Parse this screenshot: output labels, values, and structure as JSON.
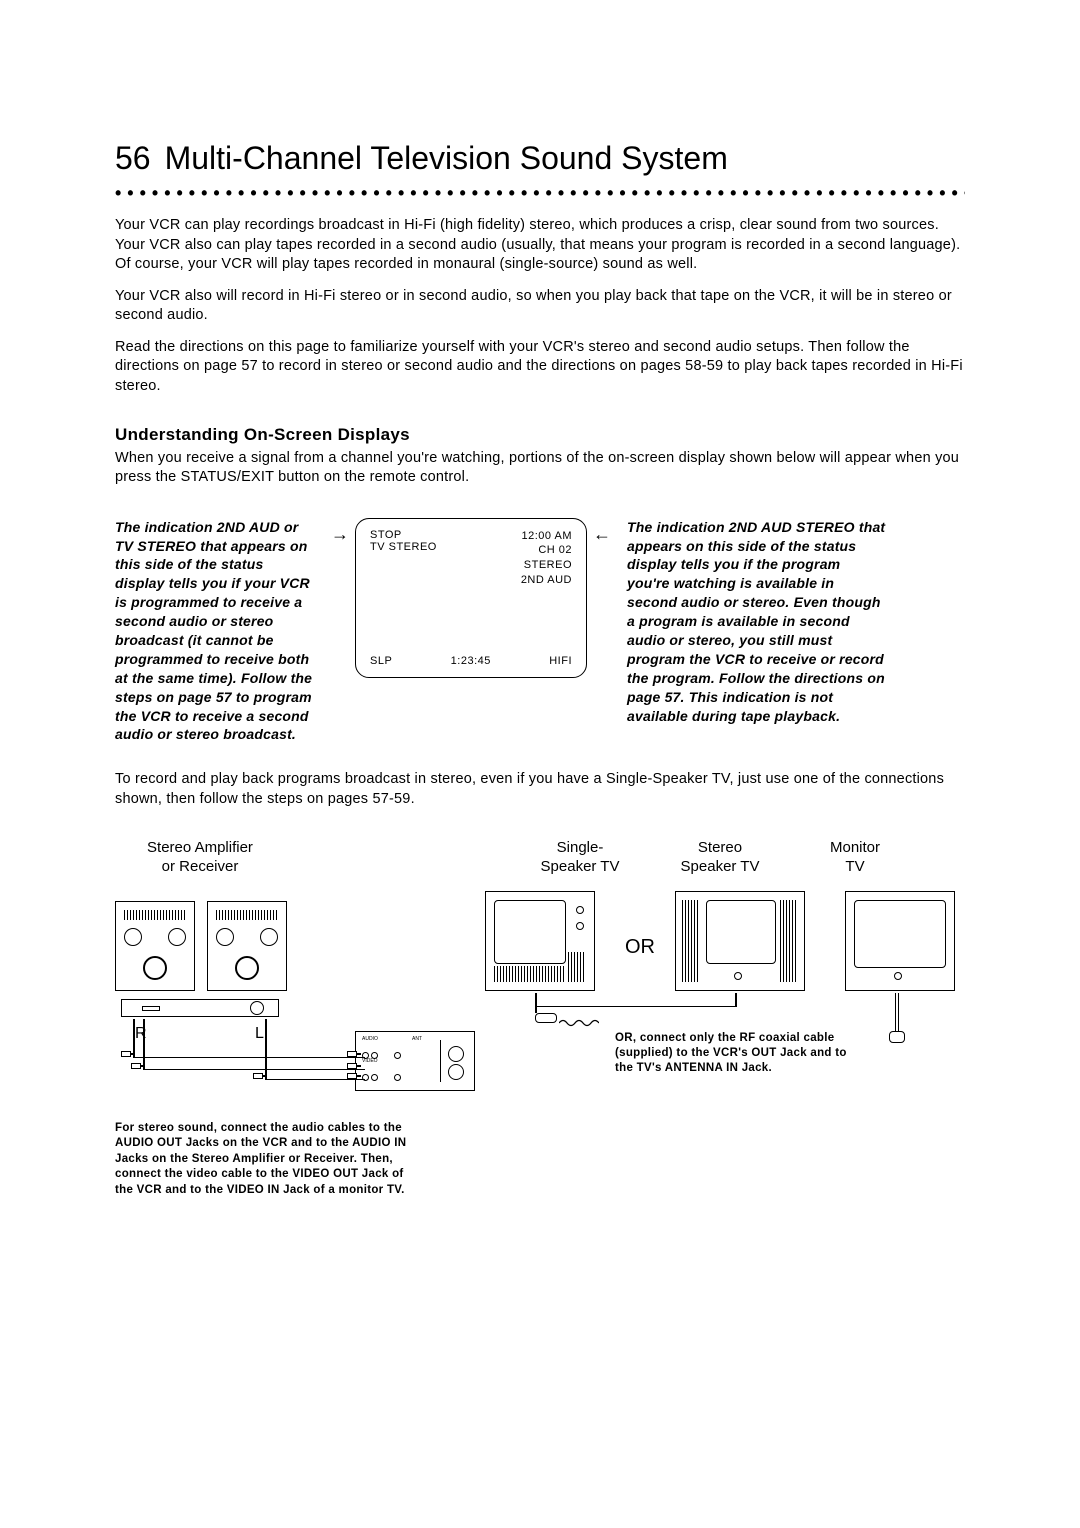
{
  "page_number": "56",
  "title": "Multi-Channel Television Sound System",
  "paragraphs": {
    "p1": "Your VCR can play recordings broadcast in Hi-Fi (high fidelity) stereo, which produces a crisp, clear sound from two sources. Your VCR also can play tapes recorded in a second audio (usually, that means your program is recorded in a second language). Of course, your VCR will play tapes recorded in monaural (single-source) sound as well.",
    "p2": "Your VCR also will record in Hi-Fi stereo or in second audio, so when you play back that tape on the VCR, it will be in stereo or second audio.",
    "p3": "Read the directions on this page to familiarize yourself with your VCR's stereo and second audio setups. Then follow the directions on page 57 to record in stereo or second audio and the directions on pages 58-59 to play back tapes recorded in Hi-Fi stereo."
  },
  "section_heading": "Understanding On-Screen Displays",
  "section_intro": "When you receive a signal from a channel you're watching, portions of the on-screen display shown below will appear when you press the STATUS/EXIT button on the remote control.",
  "left_note": "The indication 2ND AUD or TV STEREO that appears on this side of the status display tells you if your VCR is programmed to receive a second audio or stereo broadcast (it cannot be programmed to receive both at the same time). Follow the steps on page 57 to program the VCR to receive a second audio or stereo broadcast.",
  "right_note": "The indication 2ND AUD STEREO that appears on this side of the status display tells you if the program you're watching is available in second audio or stereo. Even though a program is available in second audio or stereo, you still must program the VCR to receive or record the program. Follow the directions on page 57. This indication is not available during tape playback.",
  "osd": {
    "stop": "STOP",
    "tvstereo": "TV STEREO",
    "time": "12:00 AM",
    "ch": "CH 02",
    "stereo": "STEREO",
    "secondaud": "2ND AUD",
    "slp": "SLP",
    "counter": "1:23:45",
    "hifi": "HIFI"
  },
  "after_osd": "To record and play back programs broadcast in stereo, even if you have a Single-Speaker TV, just use one of the connections shown, then follow the steps on pages 57-59.",
  "labels": {
    "amp": "Stereo Amplifier\nor Receiver",
    "single": "Single-\nSpeaker TV",
    "stereo_tv": "Stereo\nSpeaker TV",
    "monitor": "Monitor\nTV",
    "or": "OR",
    "R": "R",
    "L": "L"
  },
  "coax_note": "OR, connect only the RF coaxial cable (supplied) to the VCR's OUT Jack and to the TV's ANTENNA IN Jack.",
  "left_caption": "For stereo sound, connect the audio cables to the AUDIO OUT Jacks on the VCR and to the AUDIO IN Jacks on the Stereo Amplifier or Receiver. Then, connect the video cable to the VIDEO OUT Jack of the VCR and to the VIDEO IN Jack of a monitor TV."
}
